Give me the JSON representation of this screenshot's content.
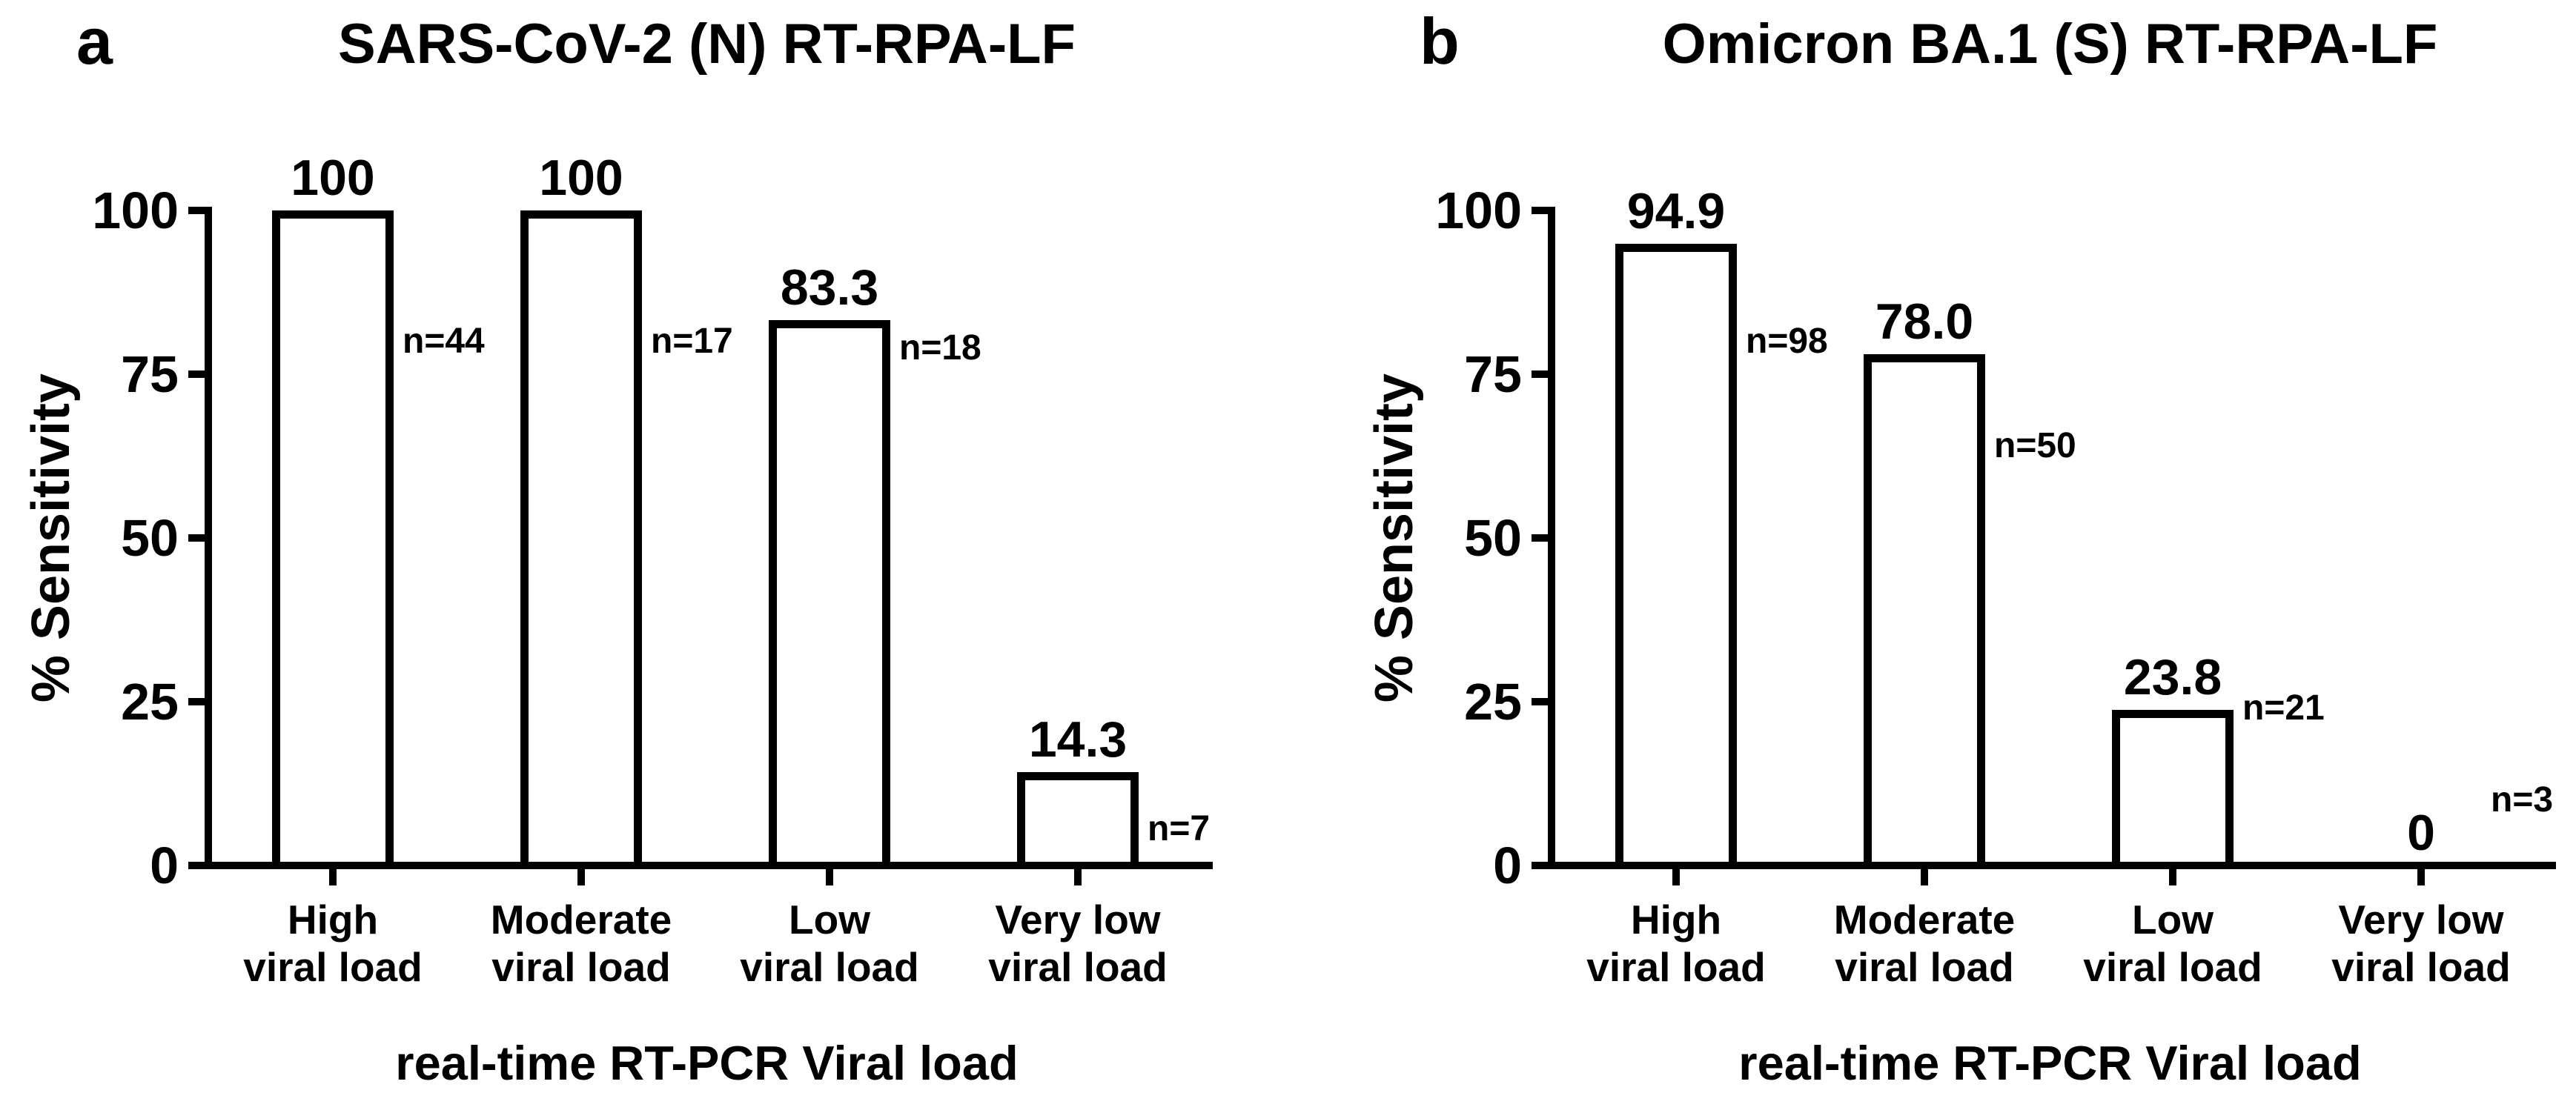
{
  "figure": {
    "background": "#ffffff",
    "ink_color": "#000000",
    "y_axis_label": "% Sensitivity",
    "x_axis_label": "real-time RT-PCR Viral load"
  },
  "chart_data": [
    {
      "type": "bar",
      "panel_letter": "a",
      "title": "SARS-CoV-2 (N) RT-RPA-LF",
      "ylabel": "% Sensitivity",
      "xlabel": "real-time RT-PCR Viral load",
      "ylim": [
        0,
        100
      ],
      "y_ticks": [
        0,
        25,
        50,
        75,
        100
      ],
      "grid": false,
      "legend": "none",
      "bar_fill": "#ffffff",
      "bar_border": "#000000",
      "categories": [
        "High viral load",
        "Moderate viral load",
        "Low viral load",
        "Very low viral load"
      ],
      "category_lines": [
        [
          "High",
          "viral load"
        ],
        [
          "Moderate",
          "viral load"
        ],
        [
          "Low",
          "viral load"
        ],
        [
          "Very low",
          "viral load"
        ]
      ],
      "values": [
        100,
        100,
        83.3,
        14.3
      ],
      "value_labels": [
        "100",
        "100",
        "83.3",
        "14.3"
      ],
      "n_labels": [
        "n=44",
        "n=17",
        "n=18",
        "n=7"
      ],
      "n_label_y": [
        80,
        80,
        79,
        5.5
      ]
    },
    {
      "type": "bar",
      "panel_letter": "b",
      "title": "Omicron BA.1 (S) RT-RPA-LF",
      "ylabel": "% Sensitivity",
      "xlabel": "real-time RT-PCR Viral load",
      "ylim": [
        0,
        100
      ],
      "y_ticks": [
        0,
        25,
        50,
        75,
        100
      ],
      "grid": false,
      "legend": "none",
      "bar_fill": "#ffffff",
      "bar_border": "#000000",
      "categories": [
        "High viral load",
        "Moderate viral load",
        "Low viral load",
        "Very low viral load"
      ],
      "category_lines": [
        [
          "High",
          "viral load"
        ],
        [
          "Moderate",
          "viral load"
        ],
        [
          "Low",
          "viral load"
        ],
        [
          "Very low",
          "viral load"
        ]
      ],
      "values": [
        94.9,
        78,
        23.8,
        0
      ],
      "value_labels": [
        "94.9",
        "78.0",
        "23.8",
        "0"
      ],
      "n_labels": [
        "n=98",
        "n=50",
        "n=21",
        "n=3"
      ],
      "n_label_y": [
        80,
        64,
        24,
        10
      ]
    }
  ]
}
